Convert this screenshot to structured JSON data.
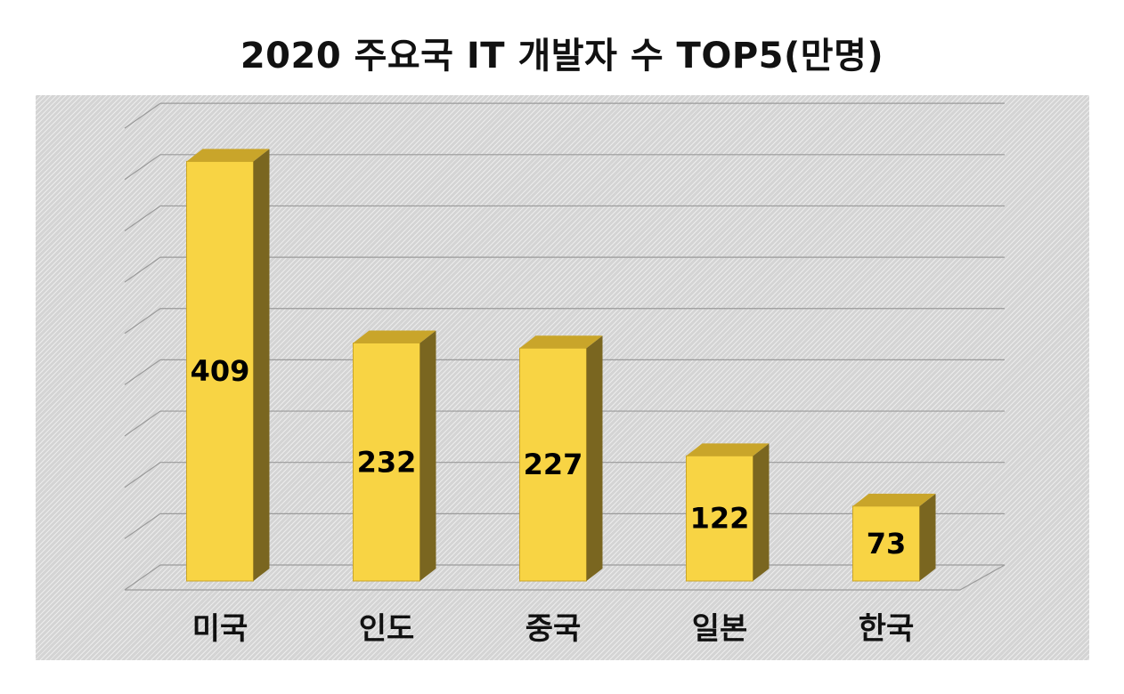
{
  "chart_data": {
    "type": "bar",
    "title": "2020 주요국 IT 개발자 수 TOP5(만명)",
    "categories": [
      "미국",
      "인도",
      "중국",
      "일본",
      "한국"
    ],
    "values": [
      409,
      232,
      227,
      122,
      73
    ],
    "ylim": [
      0,
      450
    ],
    "grid": true,
    "legend": "none",
    "data_labels": true,
    "style": "3d-column",
    "colors": {
      "bar_front": "#f8d444",
      "bar_top": "#c9a52a",
      "bar_side": "#7a6620",
      "grid": "#9a9a9a",
      "plot_background": "#d4d4d4"
    }
  }
}
